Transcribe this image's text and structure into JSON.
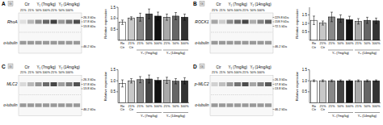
{
  "chart_data": [
    {
      "type": "gel",
      "title": "A",
      "annotations": [
        "Ctr",
        "Y₁ (7mg/kg)",
        "Y₂ (14mg/kg)",
        "G",
        "26.3 kDa",
        "17.8 kDa",
        "13.8 kDa",
        "46.2 kDa"
      ],
      "categories": [
        "21%",
        "21%",
        "50%",
        "100%",
        "21%",
        "50%",
        "100%",
        null
      ],
      "series": [
        {
          "name": "RhoA",
          "colors": [
            "rgb(88%, 88%, 88%)",
            "rgb(72%, 72%, 72%)",
            "rgb(55%, 55%, 55%)",
            "rgb(40%, 40%, 40%)",
            "rgb(25%, 25%, 25%)",
            "rgb(60%, 60%, 60%)",
            "rgb(45%, 45%, 45%)",
            "rgb(30%, 30%, 30%)"
          ]
        },
        {
          "name": "α-tubulin",
          "colors": [
            "rgb(60%, 60%, 60%)",
            "rgb(60%, 60%, 60%)",
            "rgb(60%, 60%, 60%)",
            "rgb(60%, 60%, 60%)",
            "rgb(60%, 60%, 60%)",
            "rgb(60%, 60%, 60%)",
            "rgb(60%, 60%, 60%)",
            "rgb(60%, 60%, 60%)"
          ]
        }
      ]
    },
    {
      "type": "bar",
      "ylabel": "Relative expression",
      "categories": [
        "Ro\nCtr",
        "21%\nCtr",
        "21%",
        "50%",
        "100%",
        "21%",
        "50%",
        "100%"
      ],
      "values": [
        0.82,
        1.0,
        1.05,
        1.2,
        1.1,
        1.05,
        1.1,
        1.05
      ],
      "errors": [
        0.1,
        0.07,
        0.18,
        0.22,
        0.18,
        0.14,
        0.16,
        0.14
      ],
      "colors": [
        "#ffffff",
        "#c8c8c8",
        "#888888",
        "#444444",
        "#111111",
        "#aaaaaa",
        "#666666",
        "#333333"
      ],
      "ylim": [
        0.0,
        1.5
      ],
      "yticks": [
        0.5,
        {
          "value": 1.0,
          "label": "1.0"
        },
        1.5
      ],
      "annotations": [
        "Y₁ (7mg/kg)",
        "Y₂ (14mg/kg)"
      ]
    },
    {
      "type": "gel",
      "title": "B",
      "annotations": [
        "Ctr",
        "Y₁ (7mg/kg)",
        "Y₂ (14mg/kg)",
        "G",
        "229.8 kDa",
        "158.9 kDa",
        "72.5 kDa",
        "46.2 kDa"
      ],
      "categories": [
        "21%",
        "21%",
        "50%",
        "100%",
        "21%",
        "50%",
        "100%",
        null
      ],
      "series": [
        {
          "name": "ROCK1",
          "colors": [
            "rgb(65%, 65%, 65%)",
            "rgb(80%, 80%, 80%)",
            "rgb(55%, 55%, 55%)",
            "rgb(42%, 42%, 42%)",
            "rgb(28%, 28%, 28%)",
            "rgb(68%, 68%, 68%)",
            "rgb(52%, 52%, 52%)",
            "rgb(38%, 38%, 38%)"
          ]
        },
        {
          "name": "α-tubulin",
          "colors": [
            "rgb(60%, 60%, 60%)",
            "rgb(60%, 60%, 60%)",
            "rgb(60%, 60%, 60%)",
            "rgb(60%, 60%, 60%)",
            "rgb(60%, 60%, 60%)",
            "rgb(60%, 60%, 60%)",
            "rgb(60%, 60%, 60%)",
            "rgb(60%, 60%, 60%)"
          ]
        }
      ]
    },
    {
      "type": "bar",
      "ylabel": "Relative expression",
      "categories": [
        "Ro\nCtr",
        "21%\nCtr",
        "21%",
        "50%",
        "100%",
        "21%",
        "50%",
        "100%"
      ],
      "values": [
        1.18,
        1.02,
        1.38,
        1.28,
        1.22,
        1.12,
        1.18,
        1.15
      ],
      "errors": [
        0.25,
        0.12,
        0.28,
        0.22,
        0.2,
        0.16,
        0.18,
        0.16
      ],
      "colors": [
        "#ffffff",
        "#c8c8c8",
        "#888888",
        "#444444",
        "#111111",
        "#aaaaaa",
        "#666666",
        "#333333"
      ],
      "ylim": [
        0.0,
        1.95
      ],
      "yticks": [
        0.5,
        {
          "value": 1.0,
          "label": "1.0"
        },
        1.5
      ],
      "annotations": [
        "Y₁ (7mg/kg)",
        "Y₂ (14mg/kg)"
      ]
    },
    {
      "type": "gel",
      "title": "C",
      "annotations": [
        "Ctr",
        "Y₁ (7mg/kg)",
        "Y₂ (14mg/kg)",
        "G",
        "26.3 kDa",
        "17.8 kDa",
        "13.8 kDa",
        "46.2 kDa"
      ],
      "categories": [
        "21%",
        "21%",
        "50%",
        "100%",
        "21%",
        "50%",
        "100%",
        null
      ],
      "series": [
        {
          "name": "MLC2",
          "colors": [
            "rgb(85%, 85%, 85%)",
            "rgb(72%, 72%, 72%)",
            "rgb(58%, 58%, 58%)",
            "rgb(42%, 42%, 42%)",
            "rgb(28%, 28%, 28%)",
            "rgb(62%, 62%, 62%)",
            "rgb(48%, 48%, 48%)",
            "rgb(32%, 32%, 32%)"
          ]
        },
        {
          "name": "α-tubulin",
          "colors": [
            "rgb(60%, 60%, 60%)",
            "rgb(60%, 60%, 60%)",
            "rgb(60%, 60%, 60%)",
            "rgb(60%, 60%, 60%)",
            "rgb(60%, 60%, 60%)",
            "rgb(60%, 60%, 60%)",
            "rgb(60%, 60%, 60%)",
            "rgb(60%, 60%, 60%)"
          ]
        }
      ]
    },
    {
      "type": "bar",
      "ylabel": "Relative expression",
      "categories": [
        "Ro\nCtr",
        "21%\nCtr",
        "21%",
        "50%",
        "100%",
        "21%",
        "50%",
        "100%"
      ],
      "values": [
        0.88,
        1.0,
        1.05,
        1.08,
        1.02,
        1.02,
        0.98,
        1.0
      ],
      "errors": [
        0.16,
        0.1,
        0.14,
        0.18,
        0.12,
        0.14,
        0.12,
        0.14
      ],
      "colors": [
        "#ffffff",
        "#c8c8c8",
        "#888888",
        "#444444",
        "#111111",
        "#aaaaaa",
        "#666666",
        "#333333"
      ],
      "ylim": [
        0.0,
        1.5
      ],
      "yticks": [
        0.5,
        {
          "value": 1.0,
          "label": "1.0"
        },
        1.5
      ],
      "annotations": [
        "Y₁ (7mg/kg)",
        "Y₂ (14mg/kg)"
      ]
    },
    {
      "type": "gel",
      "title": "D",
      "annotations": [
        "Ctr",
        "Y₁ (7mg/kg)",
        "Y₂ (14mg/kg)",
        "G",
        "26.3 kDa",
        "17.8 kDa",
        "13.8 kDa",
        "46.2 kDa"
      ],
      "categories": [
        "21%",
        "21%",
        "50%",
        "100%",
        "21%",
        "50%",
        "100%",
        null
      ],
      "series": [
        {
          "name": "p-MLC2",
          "colors": [
            "rgb(82%, 82%, 82%)",
            "rgb(75%, 75%, 75%)",
            "rgb(60%, 60%, 60%)",
            "rgb(45%, 45%, 45%)",
            "rgb(30%, 30%, 30%)",
            "rgb(65%, 65%, 65%)",
            "rgb(50%, 50%, 50%)",
            "rgb(35%, 35%, 35%)"
          ]
        },
        {
          "name": "α-tubulin",
          "colors": [
            "rgb(60%, 60%, 60%)",
            "rgb(60%, 60%, 60%)",
            "rgb(60%, 60%, 60%)",
            "rgb(60%, 60%, 60%)",
            "rgb(60%, 60%, 60%)",
            "rgb(60%, 60%, 60%)",
            "rgb(60%, 60%, 60%)",
            "rgb(60%, 60%, 60%)"
          ]
        }
      ]
    },
    {
      "type": "bar",
      "ylabel": "Relative expression",
      "categories": [
        "Ro\nCtr",
        "21%\nCtr",
        "21%",
        "50%",
        "100%",
        "21%",
        "50%",
        "100%"
      ],
      "values": [
        1.0,
        1.0,
        1.0,
        1.0,
        1.0,
        1.0,
        1.0,
        1.0
      ],
      "errors": [
        0.04,
        0.04,
        0.04,
        0.04,
        0.04,
        0.04,
        0.04,
        0.04
      ],
      "colors": [
        "#ffffff",
        "#c8c8c8",
        "#888888",
        "#444444",
        "#111111",
        "#aaaaaa",
        "#666666",
        "#333333"
      ],
      "ylim": [
        0.0,
        1.5
      ],
      "yticks": [
        0.5,
        {
          "value": 1.0,
          "label": "1.0"
        },
        1.5
      ],
      "annotations": [
        "Y₁ (7mg/kg)",
        "Y₂ (14mg/kg)"
      ]
    }
  ]
}
